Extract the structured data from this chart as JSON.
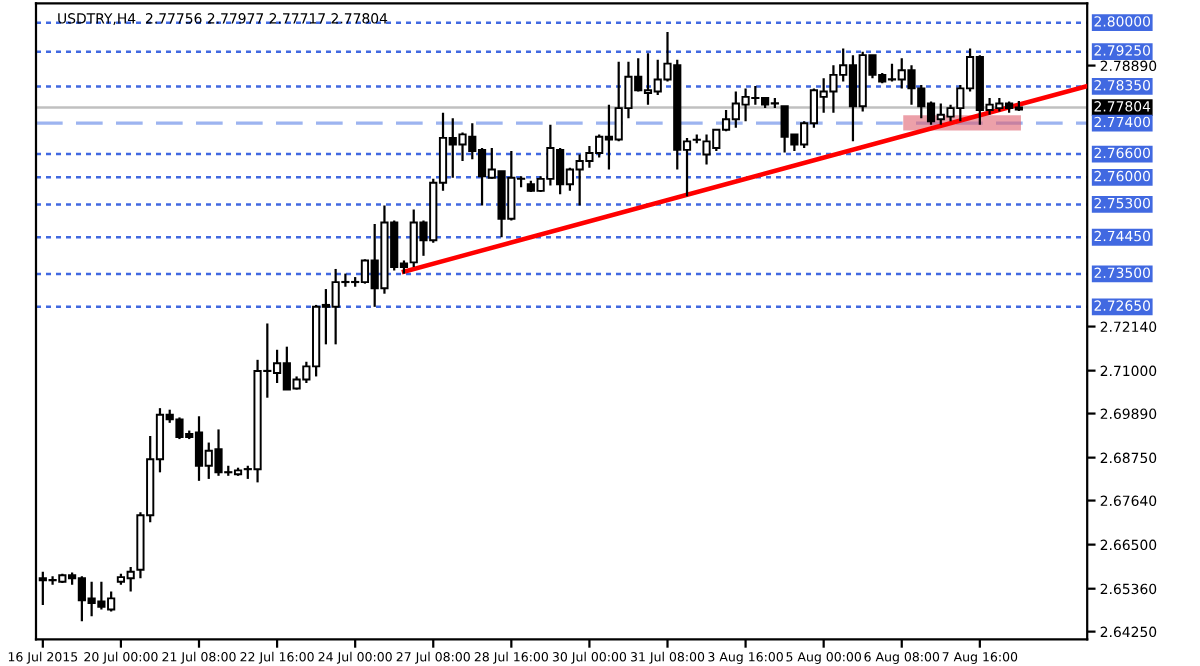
{
  "chart_data": {
    "type": "candlestick",
    "title": "USDTRY,H4  2.77756 2.77977 2.77717 2.77804",
    "categories": [
      "16 Jul 2015",
      null,
      null,
      null,
      null,
      null,
      null,
      null,
      "20 Jul 00:00",
      null,
      null,
      null,
      null,
      null,
      null,
      null,
      "21 Jul 08:00",
      null,
      null,
      null,
      null,
      null,
      null,
      null,
      "22 Jul 16:00",
      null,
      null,
      null,
      null,
      null,
      null,
      null,
      "24 Jul 00:00",
      null,
      null,
      null,
      null,
      null,
      null,
      null,
      "27 Jul 08:00",
      null,
      null,
      null,
      null,
      null,
      null,
      null,
      "28 Jul 16:00",
      null,
      null,
      null,
      null,
      null,
      null,
      null,
      "30 Jul 00:00",
      null,
      null,
      null,
      null,
      null,
      null,
      null,
      "31 Jul 08:00",
      null,
      null,
      null,
      null,
      null,
      null,
      null,
      "3 Aug 16:00",
      null,
      null,
      null,
      null,
      null,
      null,
      null,
      "5 Aug 00:00",
      null,
      null,
      null,
      null,
      null,
      null,
      null,
      "6 Aug 08:00",
      null,
      null,
      null,
      null,
      null,
      null,
      null,
      "7 Aug 16:00",
      null,
      null,
      null,
      null,
      null,
      null,
      null,
      null,
      null,
      null,
      null
    ],
    "ohlc": [
      [
        2.6563,
        2.658,
        2.6494,
        2.6558
      ],
      [
        2.6558,
        2.6568,
        2.6546,
        2.6558
      ],
      [
        2.6554,
        2.6575,
        2.6551,
        2.6571
      ],
      [
        2.6571,
        2.6578,
        2.6546,
        2.6563
      ],
      [
        2.6563,
        2.6568,
        2.6452,
        2.6506
      ],
      [
        2.6511,
        2.6554,
        2.6465,
        2.6499
      ],
      [
        2.6503,
        2.6554,
        2.6482,
        2.6489
      ],
      [
        2.6482,
        2.6529,
        2.6477,
        2.6511
      ],
      [
        2.6554,
        2.6575,
        2.6546,
        2.6566
      ],
      [
        2.6563,
        2.6592,
        2.6529,
        2.658
      ],
      [
        2.6585,
        2.6734,
        2.6563,
        2.6726
      ],
      [
        2.6726,
        2.6931,
        2.6708,
        2.6871
      ],
      [
        2.6871,
        2.7003,
        2.6837,
        2.6986
      ],
      [
        2.6986,
        2.6999,
        2.6965,
        2.6974
      ],
      [
        2.6974,
        2.6979,
        2.6923,
        2.6928
      ],
      [
        2.6936,
        2.6945,
        2.6923,
        2.6928
      ],
      [
        2.694,
        2.6982,
        2.6815,
        2.6854
      ],
      [
        2.6854,
        2.6914,
        2.682,
        2.6893
      ],
      [
        2.6897,
        2.6948,
        2.6828,
        2.6837
      ],
      [
        2.6837,
        2.6854,
        2.6828,
        2.6837
      ],
      [
        2.6832,
        2.6849,
        2.6828,
        2.6842
      ],
      [
        2.6845,
        2.6854,
        2.682,
        2.6845
      ],
      [
        2.6845,
        2.7128,
        2.6811,
        2.7099
      ],
      [
        2.7099,
        2.7222,
        2.703,
        2.7099
      ],
      [
        2.7094,
        2.7154,
        2.7068,
        2.7119
      ],
      [
        2.7119,
        2.7162,
        2.7051,
        2.7051
      ],
      [
        2.7054,
        2.7085,
        2.7051,
        2.7077
      ],
      [
        2.7077,
        2.7123,
        2.7068,
        2.7111
      ],
      [
        2.7111,
        2.727,
        2.7085,
        2.7265
      ],
      [
        2.727,
        2.7311,
        2.7168,
        2.7265
      ],
      [
        2.7265,
        2.7363,
        2.7168,
        2.7329
      ],
      [
        2.7329,
        2.7351,
        2.7317,
        2.7329
      ],
      [
        2.7329,
        2.7342,
        2.7317,
        2.7329
      ],
      [
        2.7329,
        2.7388,
        2.7325,
        2.7385
      ],
      [
        2.7385,
        2.7479,
        2.7265,
        2.7313
      ],
      [
        2.7313,
        2.7527,
        2.7299,
        2.7483
      ],
      [
        2.7483,
        2.7488,
        2.7359,
        2.7368
      ],
      [
        2.7377,
        2.7385,
        2.7351,
        2.7368
      ],
      [
        2.738,
        2.7517,
        2.7368,
        2.7483
      ],
      [
        2.7483,
        2.7488,
        2.7397,
        2.7437
      ],
      [
        2.7437,
        2.7596,
        2.7431,
        2.7586
      ],
      [
        2.7586,
        2.7767,
        2.7565,
        2.7702
      ],
      [
        2.7702,
        2.7753,
        2.7599,
        2.7685
      ],
      [
        2.7685,
        2.7716,
        2.7642,
        2.7711
      ],
      [
        2.7705,
        2.774,
        2.7647,
        2.7668
      ],
      [
        2.7671,
        2.7676,
        2.7527,
        2.7603
      ],
      [
        2.7599,
        2.7676,
        2.7596,
        2.762
      ],
      [
        2.7616,
        2.7616,
        2.7445,
        2.7493
      ],
      [
        2.7493,
        2.7668,
        2.7488,
        2.7599
      ],
      [
        2.7596,
        2.7603,
        2.7574,
        2.7596
      ],
      [
        2.7582,
        2.7591,
        2.7562,
        2.7565
      ],
      [
        2.7565,
        2.7603,
        2.7562,
        2.7596
      ],
      [
        2.7596,
        2.7736,
        2.7579,
        2.7676
      ],
      [
        2.7671,
        2.7676,
        2.7556,
        2.7582
      ],
      [
        2.7582,
        2.7625,
        2.7565,
        2.762
      ],
      [
        2.762,
        2.7659,
        2.7527,
        2.7642
      ],
      [
        2.7642,
        2.7681,
        2.7625,
        2.7663
      ],
      [
        2.7663,
        2.7711,
        2.7651,
        2.7705
      ],
      [
        2.7705,
        2.7788,
        2.762,
        2.7698
      ],
      [
        2.7698,
        2.7899,
        2.7693,
        2.7779
      ],
      [
        2.7779,
        2.7899,
        2.7753,
        2.786
      ],
      [
        2.786,
        2.7908,
        2.7822,
        2.7825
      ],
      [
        2.7818,
        2.7921,
        2.7788,
        2.7825
      ],
      [
        2.7822,
        2.7904,
        2.7813,
        2.7853
      ],
      [
        2.7853,
        2.7976,
        2.7848,
        2.7894
      ],
      [
        2.789,
        2.7904,
        2.762,
        2.7671
      ],
      [
        2.7671,
        2.7702,
        2.7551,
        2.7693
      ],
      [
        2.7697,
        2.7711,
        2.7688,
        2.7697
      ],
      [
        2.7659,
        2.7711,
        2.7633,
        2.7693
      ],
      [
        2.7676,
        2.7723,
        2.7668,
        2.7723
      ],
      [
        2.7723,
        2.7774,
        2.7719,
        2.775
      ],
      [
        2.775,
        2.7822,
        2.7728,
        2.7791
      ],
      [
        2.7788,
        2.783,
        2.7745,
        2.7808
      ],
      [
        2.7805,
        2.7836,
        2.7788,
        2.7805
      ],
      [
        2.7805,
        2.7805,
        2.7779,
        2.7788
      ],
      [
        2.7791,
        2.7805,
        2.7779,
        2.7791
      ],
      [
        2.7784,
        2.7784,
        2.7664,
        2.7705
      ],
      [
        2.7711,
        2.7711,
        2.7668,
        2.7685
      ],
      [
        2.7685,
        2.7745,
        2.7676,
        2.774
      ],
      [
        2.774,
        2.783,
        2.7728,
        2.7825
      ],
      [
        2.7808,
        2.7856,
        2.7767,
        2.7822
      ],
      [
        2.7822,
        2.789,
        2.7767,
        2.7865
      ],
      [
        2.7865,
        2.7933,
        2.7848,
        2.789
      ],
      [
        2.789,
        2.7916,
        2.7693,
        2.7784
      ],
      [
        2.7784,
        2.7925,
        2.777,
        2.7916
      ],
      [
        2.7916,
        2.7916,
        2.7856,
        2.7865
      ],
      [
        2.7865,
        2.787,
        2.7843,
        2.7848
      ],
      [
        2.7853,
        2.7894,
        2.7848,
        2.7853
      ],
      [
        2.7853,
        2.7908,
        2.783,
        2.7877
      ],
      [
        2.7877,
        2.789,
        2.7788,
        2.783
      ],
      [
        2.783,
        2.7839,
        2.7753,
        2.7784
      ],
      [
        2.7791,
        2.7796,
        2.7736,
        2.7745
      ],
      [
        2.775,
        2.7791,
        2.7736,
        2.7762
      ],
      [
        2.7757,
        2.7788,
        2.7745,
        2.7779
      ],
      [
        2.7779,
        2.7839,
        2.7745,
        2.783
      ],
      [
        2.783,
        2.7933,
        2.7822,
        2.7911
      ],
      [
        2.7911,
        2.7916,
        2.7736,
        2.7774
      ],
      [
        2.7774,
        2.7805,
        2.7762,
        2.7788
      ],
      [
        2.7779,
        2.7805,
        2.777,
        2.7791
      ],
      [
        2.7791,
        2.7796,
        2.7767,
        2.7779
      ],
      [
        2.77756,
        2.77977,
        2.77717,
        2.77804
      ],
      null,
      null,
      null,
      null,
      null,
      null,
      null
    ],
    "series": [
      {
        "type": "line",
        "color": "#ff0000",
        "values": [
          null,
          null,
          null,
          null,
          null,
          null,
          null,
          null,
          null,
          null,
          null,
          null,
          null,
          null,
          null,
          null,
          null,
          null,
          null,
          null,
          null,
          null,
          null,
          null,
          null,
          null,
          null,
          null,
          null,
          null,
          null,
          null,
          null,
          null,
          null,
          null,
          null,
          2.7356,
          null,
          null,
          null,
          null,
          null,
          null,
          null,
          null,
          null,
          null,
          null,
          null,
          null,
          null,
          null,
          null,
          null,
          null,
          null,
          null,
          null,
          null,
          null,
          null,
          null,
          null,
          null,
          null,
          null,
          null,
          null,
          null,
          null,
          null,
          null,
          null,
          null,
          null,
          null,
          null,
          null,
          null,
          null,
          null,
          null,
          null,
          null,
          null,
          null,
          null,
          null,
          null,
          null,
          null,
          null,
          null,
          null,
          null,
          null,
          null,
          null,
          null,
          null,
          null,
          null,
          null,
          null,
          null,
          null,
          2.7836
        ]
      }
    ],
    "ylim": [
      2.6405,
      2.805
    ],
    "yticks": [
      {
        "value": 2.7889,
        "label": "2.78890"
      },
      {
        "value": 2.7214,
        "label": "2.72140"
      },
      {
        "value": 2.71,
        "label": "2.71000"
      },
      {
        "value": 2.6989,
        "label": "2.69890"
      },
      {
        "value": 2.6875,
        "label": "2.68750"
      },
      {
        "value": 2.6764,
        "label": "2.67640"
      },
      {
        "value": 2.665,
        "label": "2.66500"
      },
      {
        "value": 2.6536,
        "label": "2.65360"
      },
      {
        "value": 2.6425,
        "label": "2.64250"
      }
    ],
    "ref_lines": [
      {
        "axis": "y",
        "value": 2.8,
        "label": "2.80000",
        "color": "#4169e1",
        "line_style": "dotted"
      },
      {
        "axis": "y",
        "value": 2.7925,
        "label": "2.79250",
        "color": "#4169e1",
        "line_style": "dotted"
      },
      {
        "axis": "y",
        "value": 2.7835,
        "label": "2.78350",
        "color": "#4169e1",
        "line_style": "dotted"
      },
      {
        "axis": "y",
        "value": 2.77804,
        "label": "2.77804",
        "color": "#c0c0c0",
        "line_style": "solid"
      },
      {
        "axis": "y",
        "value": 2.774,
        "label": "2.77400",
        "color": "#9db4f0",
        "line_style": "dashed"
      },
      {
        "axis": "y",
        "value": 2.766,
        "label": "2.76600",
        "color": "#4169e1",
        "line_style": "dotted"
      },
      {
        "axis": "y",
        "value": 2.76,
        "label": "2.76000",
        "color": "#4169e1",
        "line_style": "dotted"
      },
      {
        "axis": "y",
        "value": 2.753,
        "label": "2.75300",
        "color": "#4169e1",
        "line_style": "dotted"
      },
      {
        "axis": "y",
        "value": 2.7445,
        "label": "2.74450",
        "color": "#4169e1",
        "line_style": "dotted"
      },
      {
        "axis": "y",
        "value": 2.735,
        "label": "2.73500",
        "color": "#4169e1",
        "line_style": "dotted"
      },
      {
        "axis": "y",
        "value": 2.7265,
        "label": "2.72650",
        "color": "#4169e1",
        "line_style": "dotted"
      }
    ],
    "grid": false,
    "legend": false
  }
}
